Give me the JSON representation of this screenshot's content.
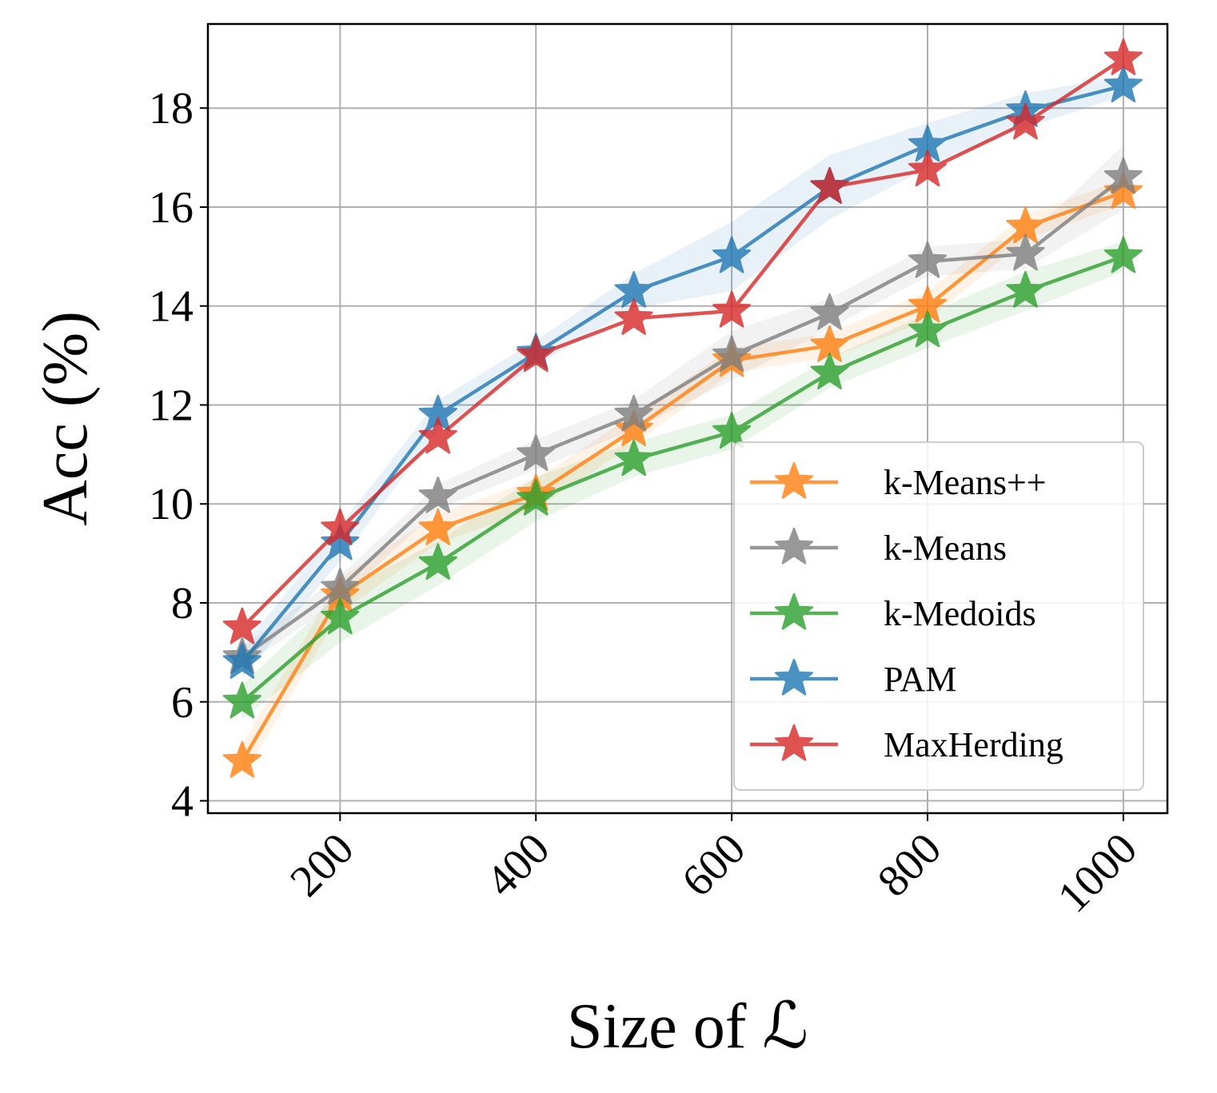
{
  "chart_data": {
    "type": "line",
    "xlabel": "Size of ℒ",
    "ylabel": "Acc (%)",
    "xlim": [
      65,
      1045
    ],
    "ylim": [
      3.75,
      19.7
    ],
    "xticks": [
      200,
      400,
      600,
      800,
      1000
    ],
    "yticks": [
      4,
      6,
      8,
      10,
      12,
      14,
      16,
      18
    ],
    "grid": true,
    "legend_position": "lower right",
    "x": [
      100,
      200,
      300,
      400,
      500,
      600,
      700,
      800,
      900,
      1000
    ],
    "series": [
      {
        "name": "k-Means++",
        "color": "#ff7f0e",
        "values": [
          4.8,
          8.15,
          9.5,
          10.2,
          11.5,
          12.9,
          13.2,
          14.0,
          15.6,
          16.3
        ],
        "band": [
          0.35,
          0.35,
          0.3,
          0.3,
          0.3,
          0.25,
          0.25,
          0.3,
          0.25,
          0.25
        ]
      },
      {
        "name": "k-Means",
        "color": "#7f7f7f",
        "values": [
          6.9,
          8.3,
          10.15,
          11.0,
          11.8,
          13.0,
          13.85,
          14.9,
          15.05,
          16.6
        ],
        "band": [
          0.2,
          0.25,
          0.25,
          0.3,
          0.3,
          0.5,
          0.3,
          0.3,
          0.3,
          0.65
        ]
      },
      {
        "name": "k-Medoids",
        "color": "#2ca02c",
        "values": [
          6.0,
          7.7,
          8.8,
          10.1,
          10.9,
          11.45,
          12.65,
          13.5,
          14.3,
          15.0
        ],
        "band": [
          0.35,
          0.5,
          0.45,
          0.45,
          0.35,
          0.35,
          0.3,
          0.35,
          0.4,
          0.3
        ]
      },
      {
        "name": "PAM",
        "color": "#1f77b4",
        "values": [
          6.8,
          9.2,
          11.8,
          13.05,
          14.3,
          15.0,
          16.4,
          17.25,
          17.95,
          18.45
        ],
        "band": [
          0.3,
          0.35,
          0.3,
          0.25,
          0.35,
          0.7,
          0.65,
          0.45,
          0.35,
          0.2
        ]
      },
      {
        "name": "MaxHerding",
        "color": "#d62728",
        "values": [
          7.5,
          9.5,
          11.35,
          13.0,
          13.75,
          13.9,
          16.4,
          16.75,
          17.7,
          19.0
        ],
        "band": [
          0,
          0,
          0,
          0,
          0,
          0,
          0,
          0,
          0,
          0
        ]
      }
    ]
  }
}
